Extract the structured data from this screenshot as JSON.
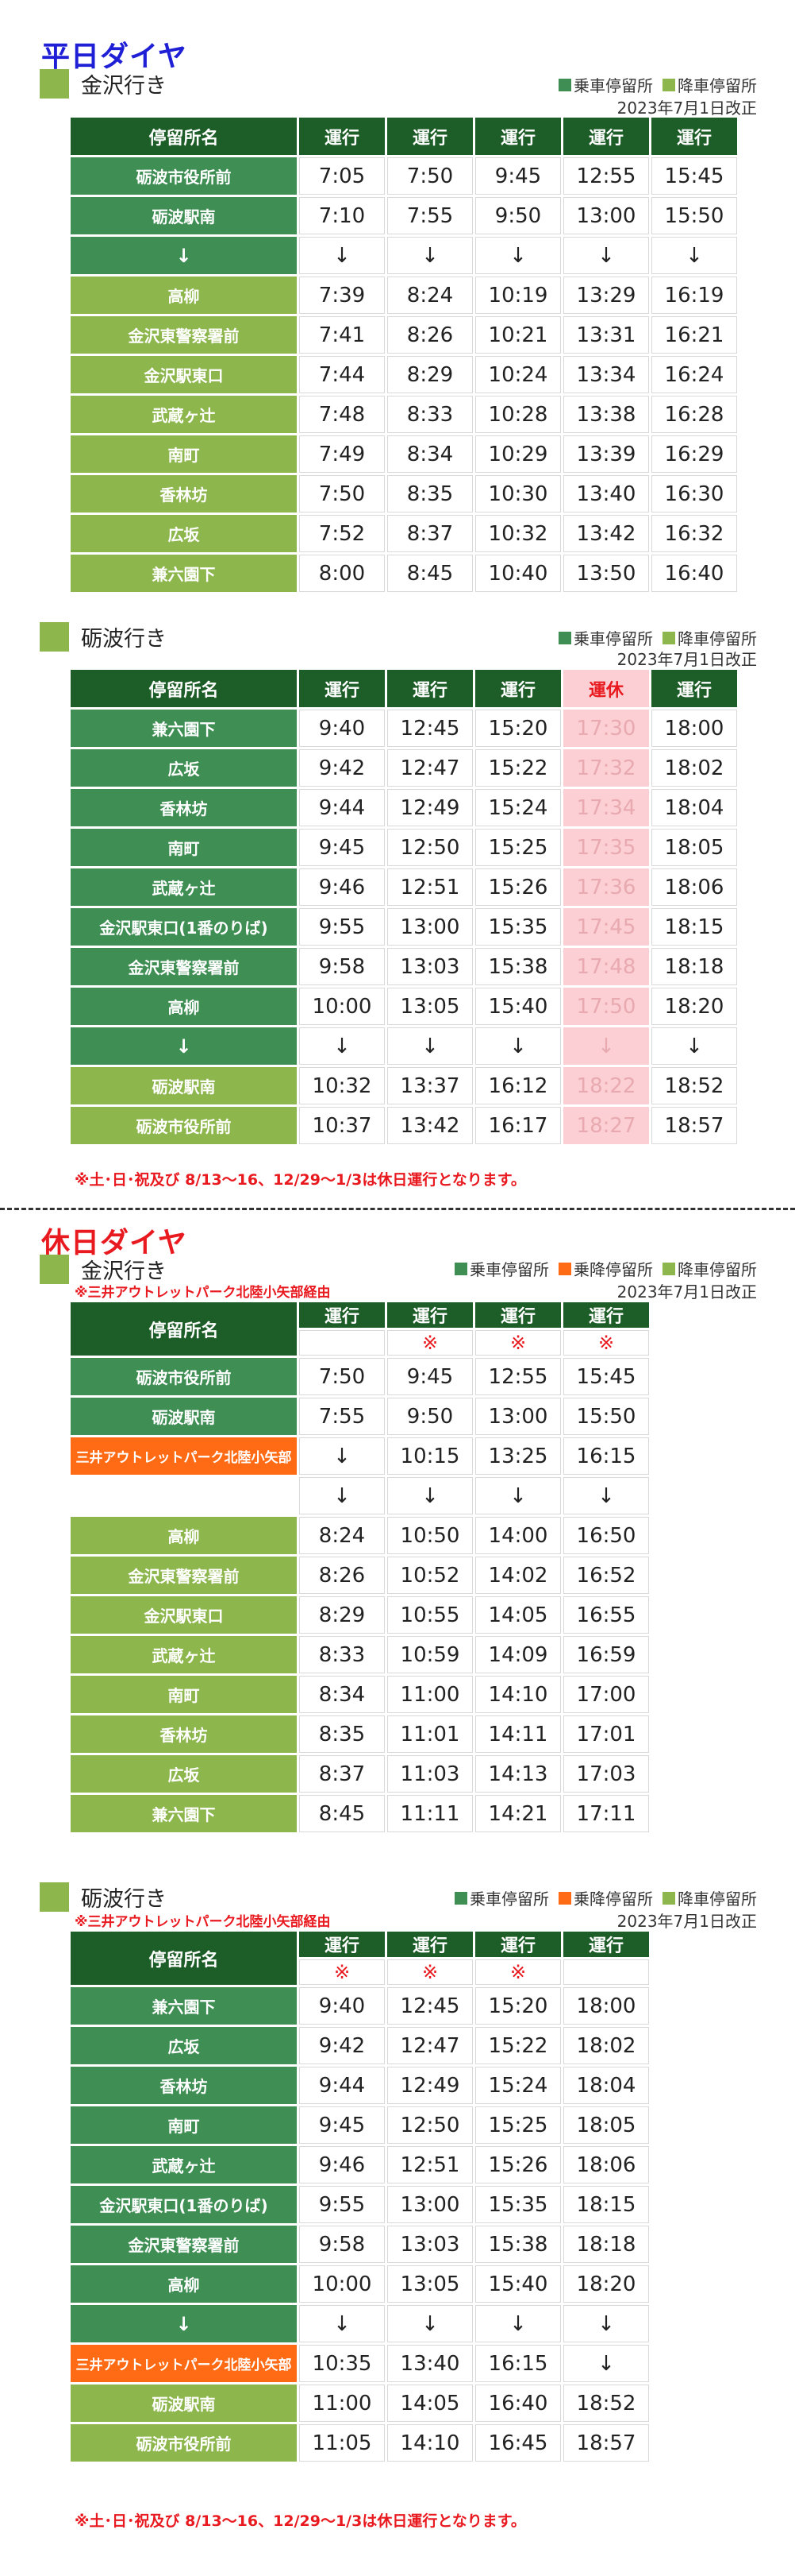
{
  "weekday_title": "平日ダイヤ",
  "holiday_title": "休日ダイヤ",
  "legend": {
    "board": "乗車停留所",
    "boardalight": "乗降停留所",
    "alight": "降車停留所",
    "colors": {
      "board": "#3f8f55",
      "boardalight": "#ff6a14",
      "alight": "#8db64d"
    }
  },
  "revised": "2023年7月1日改正",
  "via_note": "※三井アウトレットパーク北陸小矢部経由",
  "operation_note": "※土･日･祝及び 8/13～16、12/29～1/3は休日運行となります。",
  "header": {
    "stop": "停留所名",
    "run": "運行",
    "suspended": "運休"
  },
  "arrow": "↓",
  "mark": "※",
  "t1": {
    "title": "金沢行き",
    "rows": [
      {
        "stop": "砺波市役所前",
        "times": [
          "7:05",
          "7:50",
          "9:45",
          "12:55",
          "15:45"
        ]
      },
      {
        "stop": "砺波駅南",
        "times": [
          "7:10",
          "7:55",
          "9:50",
          "13:00",
          "15:50"
        ]
      },
      {
        "stop": "↓",
        "times": [
          "↓",
          "↓",
          "↓",
          "↓",
          "↓"
        ]
      },
      {
        "stop": "高柳",
        "times": [
          "7:39",
          "8:24",
          "10:19",
          "13:29",
          "16:19"
        ]
      },
      {
        "stop": "金沢東警察署前",
        "times": [
          "7:41",
          "8:26",
          "10:21",
          "13:31",
          "16:21"
        ]
      },
      {
        "stop": "金沢駅東口",
        "times": [
          "7:44",
          "8:29",
          "10:24",
          "13:34",
          "16:24"
        ]
      },
      {
        "stop": "武蔵ヶ辻",
        "times": [
          "7:48",
          "8:33",
          "10:28",
          "13:38",
          "16:28"
        ]
      },
      {
        "stop": "南町",
        "times": [
          "7:49",
          "8:34",
          "10:29",
          "13:39",
          "16:29"
        ]
      },
      {
        "stop": "香林坊",
        "times": [
          "7:50",
          "8:35",
          "10:30",
          "13:40",
          "16:30"
        ]
      },
      {
        "stop": "広坂",
        "times": [
          "7:52",
          "8:37",
          "10:32",
          "13:42",
          "16:32"
        ]
      },
      {
        "stop": "兼六園下",
        "times": [
          "8:00",
          "8:45",
          "10:40",
          "13:50",
          "16:40"
        ]
      }
    ]
  },
  "t2": {
    "title": "砺波行き",
    "rows": [
      {
        "stop": "兼六園下",
        "times": [
          "9:40",
          "12:45",
          "15:20",
          "17:30",
          "18:00"
        ]
      },
      {
        "stop": "広坂",
        "times": [
          "9:42",
          "12:47",
          "15:22",
          "17:32",
          "18:02"
        ]
      },
      {
        "stop": "香林坊",
        "times": [
          "9:44",
          "12:49",
          "15:24",
          "17:34",
          "18:04"
        ]
      },
      {
        "stop": "南町",
        "times": [
          "9:45",
          "12:50",
          "15:25",
          "17:35",
          "18:05"
        ]
      },
      {
        "stop": "武蔵ヶ辻",
        "times": [
          "9:46",
          "12:51",
          "15:26",
          "17:36",
          "18:06"
        ]
      },
      {
        "stop": "金沢駅東口(1番のりば)",
        "times": [
          "9:55",
          "13:00",
          "15:35",
          "17:45",
          "18:15"
        ]
      },
      {
        "stop": "金沢東警察署前",
        "times": [
          "9:58",
          "13:03",
          "15:38",
          "17:48",
          "18:18"
        ]
      },
      {
        "stop": "高柳",
        "times": [
          "10:00",
          "13:05",
          "15:40",
          "17:50",
          "18:20"
        ]
      },
      {
        "stop": "↓",
        "times": [
          "↓",
          "↓",
          "↓",
          "↓",
          "↓"
        ]
      },
      {
        "stop": "砺波駅南",
        "times": [
          "10:32",
          "13:37",
          "16:12",
          "18:22",
          "18:52"
        ]
      },
      {
        "stop": "砺波市役所前",
        "times": [
          "10:37",
          "13:42",
          "16:17",
          "18:27",
          "18:57"
        ]
      }
    ]
  },
  "t3": {
    "title": "金沢行き",
    "rows": [
      {
        "stop": "砺波市役所前",
        "times": [
          "7:50",
          "9:45",
          "12:55",
          "15:45"
        ]
      },
      {
        "stop": "砺波駅南",
        "times": [
          "7:55",
          "9:50",
          "13:00",
          "15:50"
        ]
      },
      {
        "stop": "三井アウトレットパーク北陸小矢部",
        "times": [
          "↓",
          "10:15",
          "13:25",
          "16:15"
        ]
      },
      {
        "stop": "",
        "times": [
          "↓",
          "↓",
          "↓",
          "↓"
        ]
      },
      {
        "stop": "高柳",
        "times": [
          "8:24",
          "10:50",
          "14:00",
          "16:50"
        ]
      },
      {
        "stop": "金沢東警察署前",
        "times": [
          "8:26",
          "10:52",
          "14:02",
          "16:52"
        ]
      },
      {
        "stop": "金沢駅東口",
        "times": [
          "8:29",
          "10:55",
          "14:05",
          "16:55"
        ]
      },
      {
        "stop": "武蔵ヶ辻",
        "times": [
          "8:33",
          "10:59",
          "14:09",
          "16:59"
        ]
      },
      {
        "stop": "南町",
        "times": [
          "8:34",
          "11:00",
          "14:10",
          "17:00"
        ]
      },
      {
        "stop": "香林坊",
        "times": [
          "8:35",
          "11:01",
          "14:11",
          "17:01"
        ]
      },
      {
        "stop": "広坂",
        "times": [
          "8:37",
          "11:03",
          "14:13",
          "17:03"
        ]
      },
      {
        "stop": "兼六園下",
        "times": [
          "8:45",
          "11:11",
          "14:21",
          "17:11"
        ]
      }
    ]
  },
  "t4": {
    "title": "砺波行き",
    "rows": [
      {
        "stop": "兼六園下",
        "times": [
          "9:40",
          "12:45",
          "15:20",
          "18:00"
        ]
      },
      {
        "stop": "広坂",
        "times": [
          "9:42",
          "12:47",
          "15:22",
          "18:02"
        ]
      },
      {
        "stop": "香林坊",
        "times": [
          "9:44",
          "12:49",
          "15:24",
          "18:04"
        ]
      },
      {
        "stop": "南町",
        "times": [
          "9:45",
          "12:50",
          "15:25",
          "18:05"
        ]
      },
      {
        "stop": "武蔵ヶ辻",
        "times": [
          "9:46",
          "12:51",
          "15:26",
          "18:06"
        ]
      },
      {
        "stop": "金沢駅東口(1番のりば)",
        "times": [
          "9:55",
          "13:00",
          "15:35",
          "18:15"
        ]
      },
      {
        "stop": "金沢東警察署前",
        "times": [
          "9:58",
          "13:03",
          "15:38",
          "18:18"
        ]
      },
      {
        "stop": "高柳",
        "times": [
          "10:00",
          "13:05",
          "15:40",
          "18:20"
        ]
      },
      {
        "stop": "↓",
        "times": [
          "↓",
          "↓",
          "↓",
          "↓"
        ]
      },
      {
        "stop": "三井アウトレットパーク北陸小矢部",
        "times": [
          "10:35",
          "13:40",
          "16:15",
          "↓"
        ]
      },
      {
        "stop": "砺波駅南",
        "times": [
          "11:00",
          "14:05",
          "16:40",
          "18:52"
        ]
      },
      {
        "stop": "砺波市役所前",
        "times": [
          "11:05",
          "14:10",
          "16:45",
          "18:57"
        ]
      }
    ]
  }
}
